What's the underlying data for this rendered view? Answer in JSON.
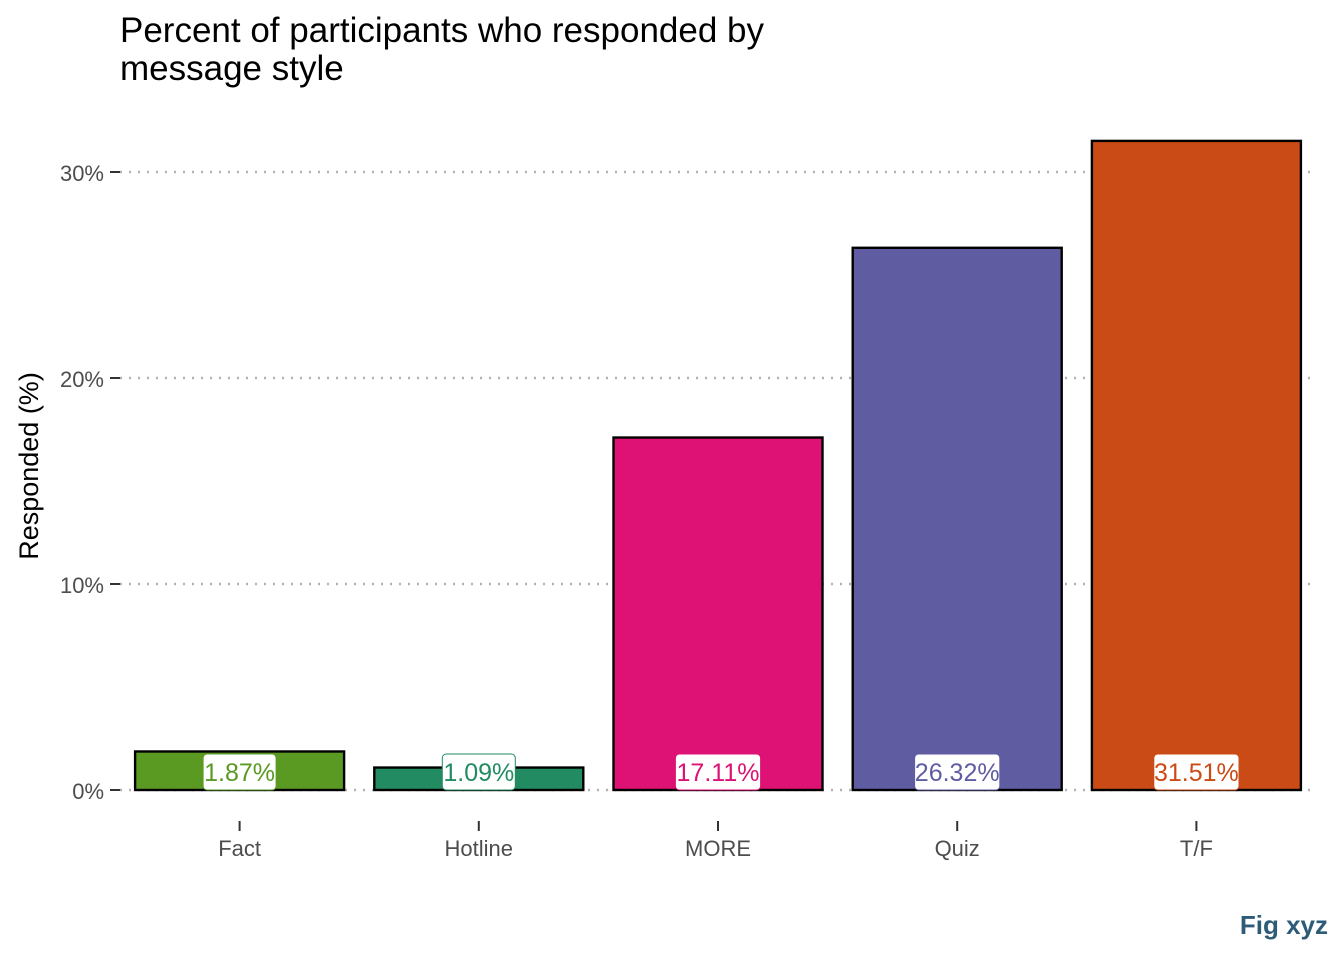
{
  "chart_data": {
    "type": "bar",
    "title": "Percent of participants who responded by message style",
    "xlabel": "",
    "ylabel": "Responded (%)",
    "categories": [
      "Fact",
      "Hotline",
      "MORE",
      "Quiz",
      "T/F"
    ],
    "values": [
      1.87,
      1.09,
      17.11,
      26.32,
      31.51
    ],
    "value_labels": [
      "1.87%",
      "1.09%",
      "17.11%",
      "26.32%",
      "31.51%"
    ],
    "colors": [
      "#5a9a23",
      "#238b62",
      "#dd1274",
      "#605ca2",
      "#cb4b16"
    ],
    "y_ticks": [
      0,
      10,
      20,
      30
    ],
    "y_tick_labels": [
      "0%",
      "10%",
      "20%",
      "30%"
    ],
    "ylim": [
      0,
      31.51
    ],
    "grid": "horizontal-dotted",
    "legend": "none"
  },
  "caption": "Fig xyz"
}
